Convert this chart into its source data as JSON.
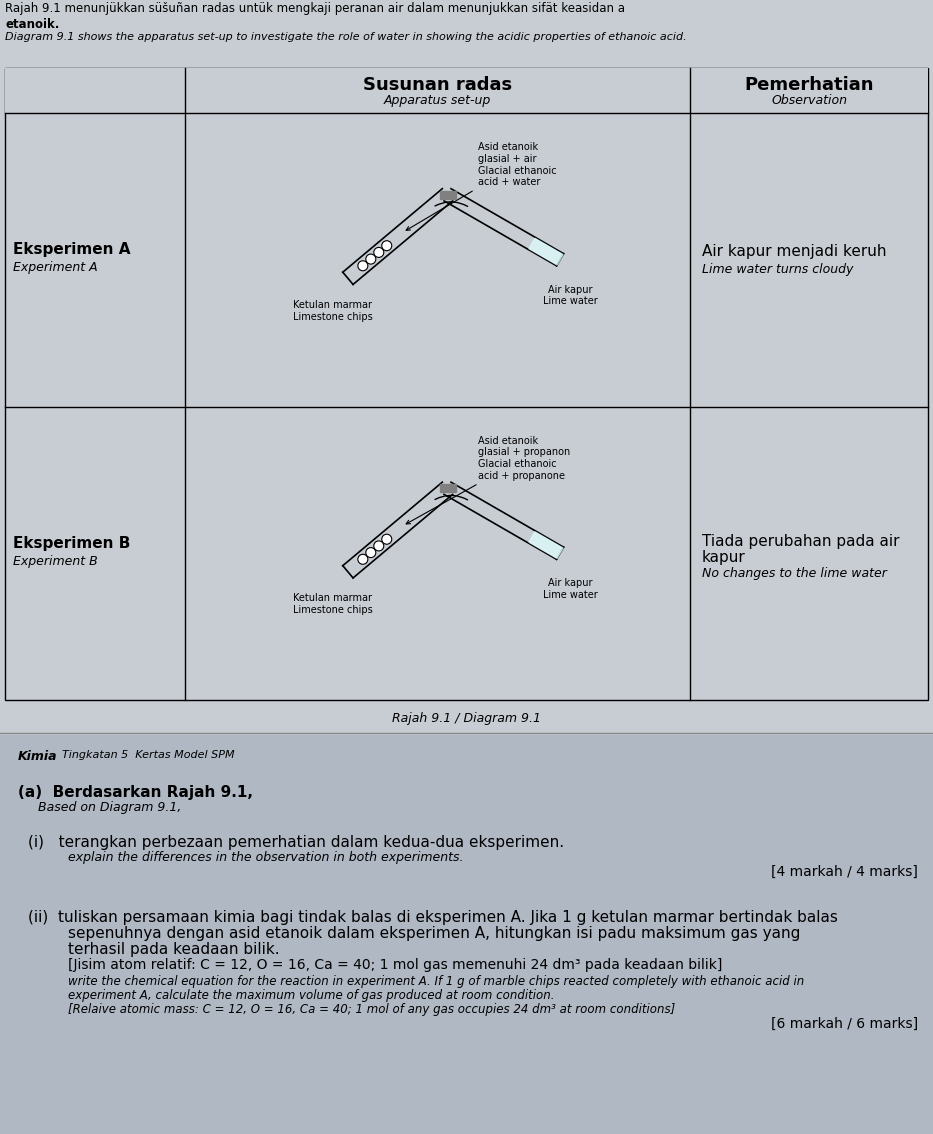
{
  "bg_color": "#c8cdd4",
  "table_bg": "#c8cdd4",
  "header_bg": "#c8cdd4",
  "white": "#ffffff",
  "title_line1": "Rajah 9.1 menunjükkan süšuñan radas untük mengkaji peranan air dalam menunjukkan sifät keasidan a",
  "title_line2": "etanoik.",
  "subtitle": "Diagram 9.1 shows the apparatus set-up to investigate the role of water in showing the acidic properties of ethanoic acid.",
  "col_header_left": "Susunan radas",
  "col_header_left_sub": "Apparatus set-up",
  "col_header_right": "Pemerhatian",
  "col_header_right_sub": "Observation",
  "exp_a_malay": "Eksperimen A",
  "exp_a_eng": "Experiment A",
  "exp_b_malay": "Eksperimen B",
  "exp_b_eng": "Experiment B",
  "obs_a_malay": "Air kapur menjadi keruh",
  "obs_a_eng": "Lime water turns cloudy",
  "obs_b_malay": "Tiada perubahan pada air\nkapur",
  "obs_b_eng": "No changes to the lime water",
  "diagram_caption": "Rajah 9.1 / Diagram 9.1",
  "acid_a_label_malay": "Asid etanoik\nglasial + air",
  "acid_a_label_eng": "Glacial ethanoic\nacid + water",
  "acid_b_label_malay": "Asid etanoik\nglasial + propanon",
  "acid_b_label_eng": "Glacial ethanoic\nacid + propanone",
  "limestone_malay": "Ketulan marmar",
  "limestone_eng": "Limestone chips",
  "limewater_malay": "Air kapur",
  "limewater_eng": "Lime water",
  "footer_kimia": "Kimia",
  "footer_rest": "  Tingkatan 5  Kertas Model SPM",
  "question_a": "(a)  Berdasarkan Rajah 9.1,",
  "question_a_eng": "Based on Diagram 9.1,",
  "question_i_malay": "(i)   terangkan perbezaan pemerhatian dalam kedua-dua eksperimen.",
  "question_i_eng": "explain the differences in the observation in both experiments.",
  "question_i_marks": "[4 markah / 4 marks]",
  "question_ii_malay1": "(ii)  tuliskan persamaan kimia bagi tindak balas di eksperimen A. Jika 1 g ketulan marmar bertindak balas",
  "question_ii_malay2": "sepenuhnya dengan asid etanoik dalam eksperimen A, hitungkan isi padu maksimum gas yang",
  "question_ii_malay3": "terhasil pada keadaan bilik.",
  "question_ii_malay4": "[Jisim atom relatif: C = 12, O = 16, Ca = 40; 1 mol gas memenuhi 24 dm³ pada keadaan bilik]",
  "question_ii_eng1": "write the chemical equation for the reaction in experiment A. If 1 g of marble chips reacted completely with ethanoic acid in",
  "question_ii_eng2": "experiment A, calculate the maximum volume of gas produced at room condition.",
  "question_ii_eng3": "[Relaive atomic mass: C = 12, O = 16, Ca = 40; 1 mol of any gas occupies 24 dm³ at room conditions]",
  "question_ii_marks": "[6 markah / 6 marks]"
}
